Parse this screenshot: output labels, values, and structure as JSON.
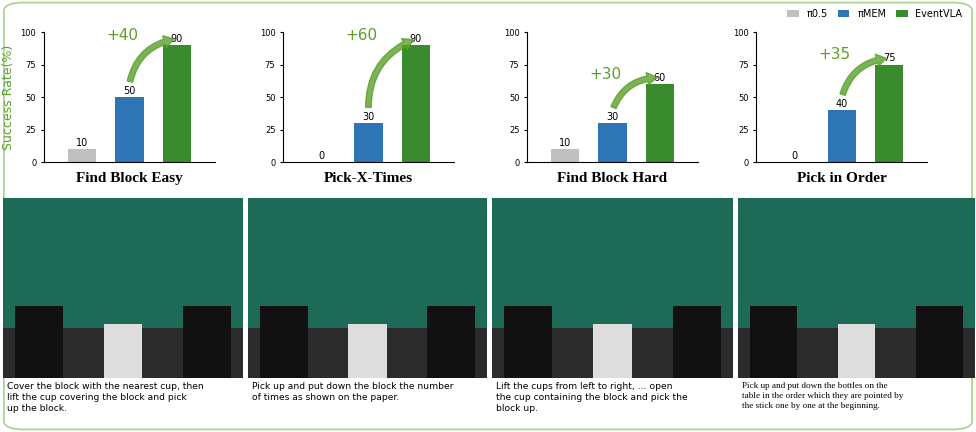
{
  "chart_data": [
    {
      "type": "bar",
      "title": "Find Block Easy",
      "y_label": "Success Rate(%)",
      "categories": [
        null
      ],
      "series": [
        {
          "name": "π0.5",
          "color": "#c0c0c0",
          "values": [
            10
          ]
        },
        {
          "name": "πMEM",
          "color": "#2e75b6",
          "values": [
            50
          ]
        },
        {
          "name": "EventVLA",
          "color": "#3a8a2e",
          "values": [
            90
          ]
        }
      ],
      "annotation": "+40",
      "ylim": [
        0,
        100
      ],
      "yticks": [
        0,
        25,
        50,
        75,
        100
      ],
      "data_labels": true,
      "tick_labels": "y"
    },
    {
      "type": "bar",
      "title": "Pick-X-Times",
      "categories": [
        null
      ],
      "series": [
        {
          "name": "π0.5",
          "color": "#c0c0c0",
          "values": [
            0
          ]
        },
        {
          "name": "πMEM",
          "color": "#2e75b6",
          "values": [
            30
          ]
        },
        {
          "name": "EventVLA",
          "color": "#3a8a2e",
          "values": [
            90
          ]
        }
      ],
      "annotation": "+60",
      "ylim": [
        0,
        100
      ],
      "yticks": [
        0,
        25,
        50,
        75,
        100
      ],
      "data_labels": true,
      "tick_labels": "y"
    },
    {
      "type": "bar",
      "title": "Find Block Hard",
      "categories": [
        null
      ],
      "series": [
        {
          "name": "π0.5",
          "color": "#c0c0c0",
          "values": [
            10
          ]
        },
        {
          "name": "πMEM",
          "color": "#2e75b6",
          "values": [
            30
          ]
        },
        {
          "name": "EventVLA",
          "color": "#3a8a2e",
          "values": [
            60
          ]
        }
      ],
      "annotation": "+30",
      "ylim": [
        0,
        100
      ],
      "yticks": [
        0,
        25,
        50,
        75,
        100
      ],
      "data_labels": true,
      "tick_labels": "y"
    },
    {
      "type": "bar",
      "title": "Pick in Order",
      "categories": [
        null
      ],
      "series": [
        {
          "name": "π0.5",
          "color": "#c0c0c0",
          "values": [
            0
          ]
        },
        {
          "name": "πMEM",
          "color": "#2e75b6",
          "values": [
            40
          ]
        },
        {
          "name": "EventVLA",
          "color": "#3a8a2e",
          "values": [
            75
          ]
        }
      ],
      "annotation": "+35",
      "ylim": [
        0,
        100
      ],
      "yticks": [
        0,
        25,
        50,
        75,
        100
      ],
      "data_labels": true,
      "tick_labels": "y",
      "legend": "upper right"
    }
  ],
  "images": [
    {
      "caption": "Cover the block with the nearest cup, then lift the cup covering the block and pick up the block."
    },
    {
      "caption": "Pick up and put down the block the number of times as shown on the paper."
    },
    {
      "caption": "Lift the cups from left to right, … open the cup containing the block and pick the block up."
    },
    {
      "caption": "Pick up and put down the bottles on the table in the order which they are pointed by the stick one by one at the beginning."
    }
  ]
}
